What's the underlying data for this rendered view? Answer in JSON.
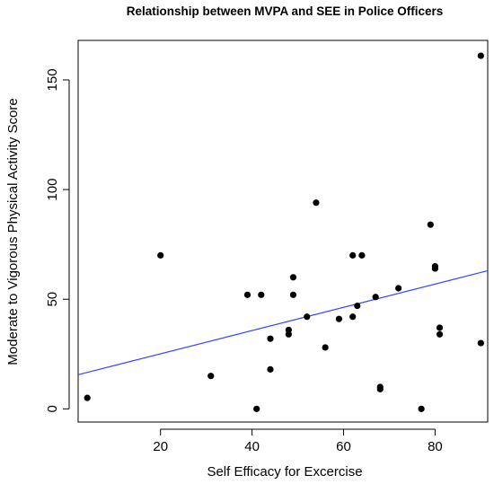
{
  "chart_data": {
    "type": "scatter",
    "title": "Relationship between MVPA and SEE in Police Officers",
    "xlabel": "Self Efficacy for Excercise",
    "ylabel": "Moderate to Vigorous Physical Activity Score",
    "xlim": [
      2,
      91.5
    ],
    "ylim": [
      -6,
      168
    ],
    "xticks": [
      20,
      40,
      60,
      80
    ],
    "yticks": [
      0,
      50,
      100,
      150
    ],
    "grid": false,
    "legend": "none",
    "point_color": "#000000",
    "fit_line_color": "#3344ff",
    "fit_line": {
      "intercept": 14.5,
      "slope": 0.53
    },
    "points": [
      {
        "x": 4,
        "y": 5
      },
      {
        "x": 20,
        "y": 70
      },
      {
        "x": 31,
        "y": 15
      },
      {
        "x": 39,
        "y": 52
      },
      {
        "x": 41,
        "y": 0
      },
      {
        "x": 42,
        "y": 52
      },
      {
        "x": 44,
        "y": 32
      },
      {
        "x": 44,
        "y": 18
      },
      {
        "x": 48,
        "y": 36
      },
      {
        "x": 48,
        "y": 34
      },
      {
        "x": 49,
        "y": 60
      },
      {
        "x": 49,
        "y": 52
      },
      {
        "x": 52,
        "y": 42
      },
      {
        "x": 54,
        "y": 94
      },
      {
        "x": 56,
        "y": 28
      },
      {
        "x": 59,
        "y": 41
      },
      {
        "x": 62,
        "y": 70
      },
      {
        "x": 62,
        "y": 42
      },
      {
        "x": 63,
        "y": 47
      },
      {
        "x": 64,
        "y": 70
      },
      {
        "x": 67,
        "y": 51
      },
      {
        "x": 68,
        "y": 10
      },
      {
        "x": 68,
        "y": 9
      },
      {
        "x": 72,
        "y": 55
      },
      {
        "x": 77,
        "y": 0
      },
      {
        "x": 79,
        "y": 84
      },
      {
        "x": 80,
        "y": 65
      },
      {
        "x": 80,
        "y": 64
      },
      {
        "x": 81,
        "y": 37
      },
      {
        "x": 81,
        "y": 34
      },
      {
        "x": 90,
        "y": 161
      },
      {
        "x": 90,
        "y": 30
      }
    ]
  }
}
